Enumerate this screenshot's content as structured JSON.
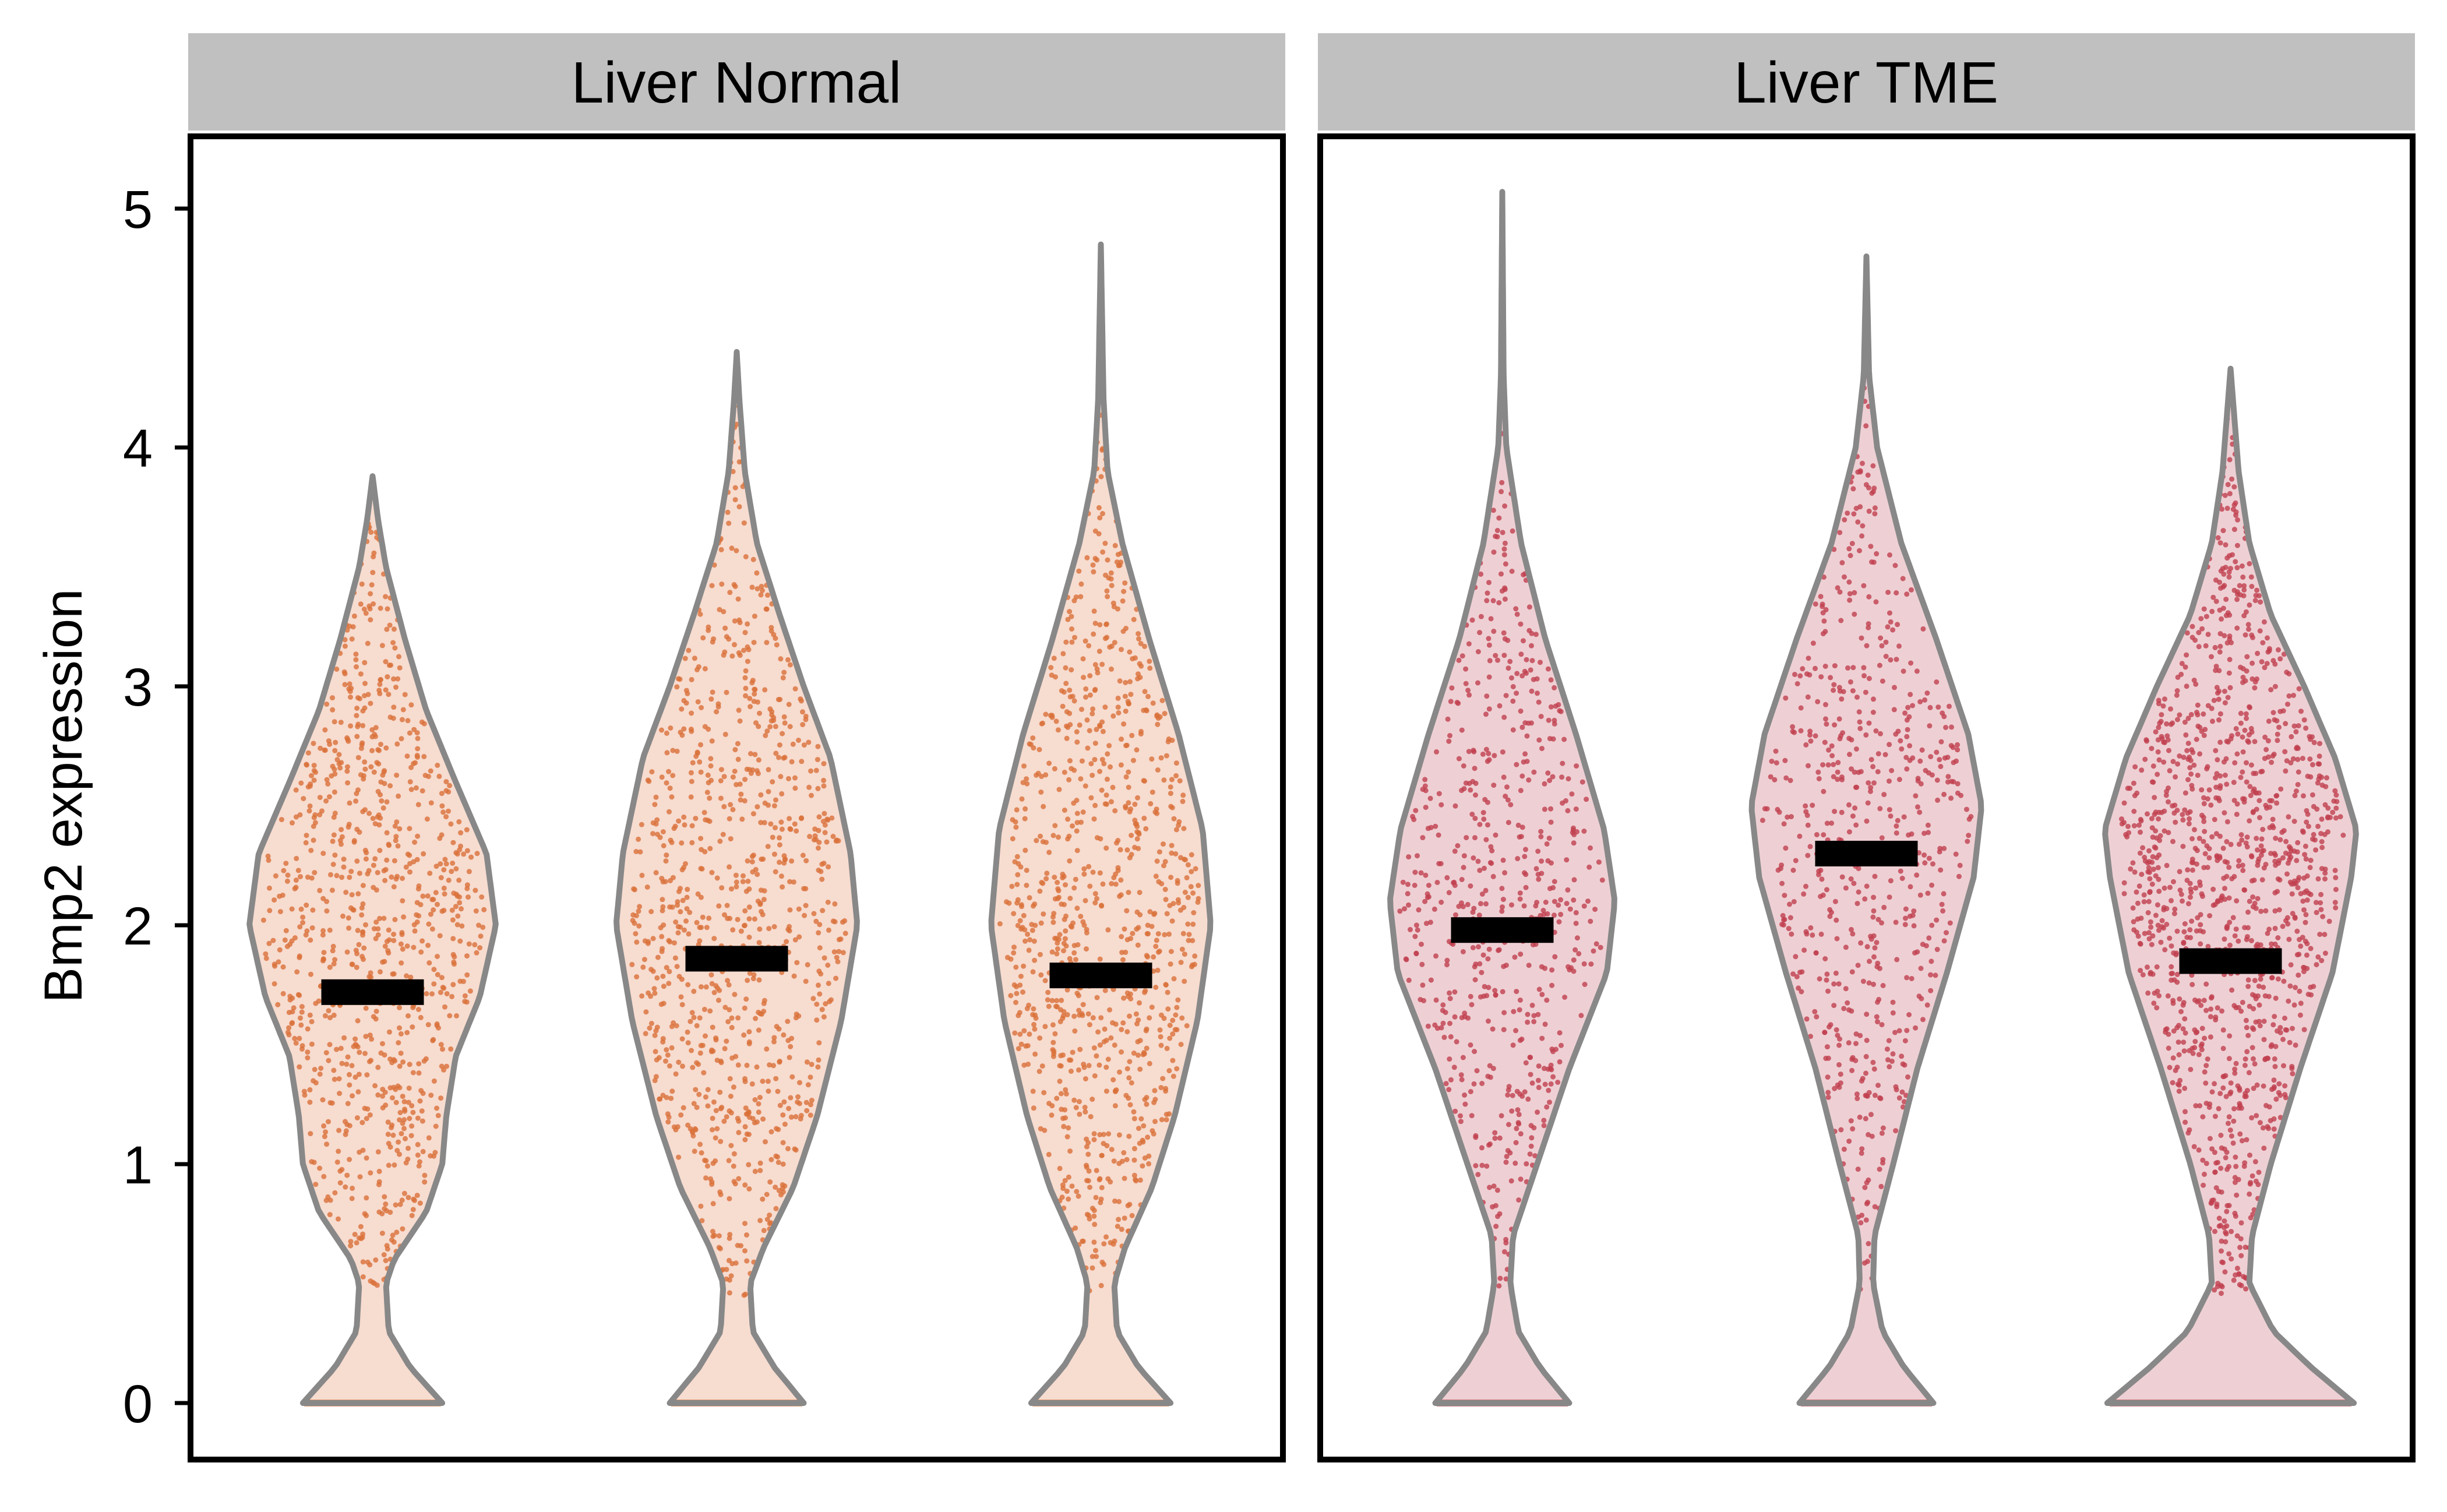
{
  "chart_data": {
    "type": "violin",
    "ylabel": "Bmp2 expression",
    "ylim": [
      -0.25,
      5.3
    ],
    "yticks": [
      0,
      1,
      2,
      3,
      4,
      5
    ],
    "grid": false,
    "legend": "none",
    "panels": [
      {
        "title": "Liver Normal",
        "fill": "#f7dcd0",
        "point_color": "#d9703a",
        "zero_color": "#c8500a",
        "violins": [
          {
            "median": 1.72,
            "max": 3.88,
            "density": [
              [
                0,
                0.52
              ],
              [
                0.15,
                0.28
              ],
              [
                0.3,
                0.12
              ],
              [
                0.5,
                0.1
              ],
              [
                0.6,
                0.16
              ],
              [
                0.8,
                0.4
              ],
              [
                1.0,
                0.52
              ],
              [
                1.2,
                0.55
              ],
              [
                1.45,
                0.62
              ],
              [
                1.7,
                0.8
              ],
              [
                2.0,
                0.92
              ],
              [
                2.3,
                0.85
              ],
              [
                2.6,
                0.62
              ],
              [
                2.9,
                0.4
              ],
              [
                3.2,
                0.24
              ],
              [
                3.5,
                0.1
              ],
              [
                3.7,
                0.04
              ],
              [
                3.88,
                0
              ]
            ]
          },
          {
            "median": 1.86,
            "max": 4.4,
            "density": [
              [
                0,
                0.5
              ],
              [
                0.15,
                0.28
              ],
              [
                0.3,
                0.12
              ],
              [
                0.5,
                0.1
              ],
              [
                0.65,
                0.2
              ],
              [
                0.9,
                0.42
              ],
              [
                1.2,
                0.6
              ],
              [
                1.6,
                0.78
              ],
              [
                2.0,
                0.9
              ],
              [
                2.3,
                0.85
              ],
              [
                2.7,
                0.7
              ],
              [
                3.0,
                0.5
              ],
              [
                3.3,
                0.32
              ],
              [
                3.6,
                0.15
              ],
              [
                3.9,
                0.06
              ],
              [
                4.2,
                0.02
              ],
              [
                4.4,
                0
              ]
            ]
          },
          {
            "median": 1.79,
            "max": 4.85,
            "density": [
              [
                0,
                0.52
              ],
              [
                0.15,
                0.28
              ],
              [
                0.3,
                0.12
              ],
              [
                0.5,
                0.1
              ],
              [
                0.65,
                0.18
              ],
              [
                0.9,
                0.38
              ],
              [
                1.2,
                0.55
              ],
              [
                1.6,
                0.72
              ],
              [
                2.0,
                0.82
              ],
              [
                2.4,
                0.76
              ],
              [
                2.8,
                0.58
              ],
              [
                3.2,
                0.36
              ],
              [
                3.6,
                0.16
              ],
              [
                3.9,
                0.05
              ],
              [
                4.2,
                0.02
              ],
              [
                4.85,
                0
              ]
            ]
          }
        ]
      },
      {
        "title": "Liver TME",
        "fill": "#eed0d4",
        "point_color": "#c0404f",
        "zero_color": "#a31a22",
        "violins": [
          {
            "median": 1.98,
            "max": 5.07,
            "density": [
              [
                0,
                0.5
              ],
              [
                0.15,
                0.28
              ],
              [
                0.3,
                0.12
              ],
              [
                0.5,
                0.06
              ],
              [
                0.7,
                0.08
              ],
              [
                1.0,
                0.26
              ],
              [
                1.4,
                0.5
              ],
              [
                1.8,
                0.78
              ],
              [
                2.1,
                0.84
              ],
              [
                2.4,
                0.76
              ],
              [
                2.8,
                0.55
              ],
              [
                3.2,
                0.32
              ],
              [
                3.6,
                0.14
              ],
              [
                4.0,
                0.03
              ],
              [
                4.3,
                0.01
              ],
              [
                5.07,
                0
              ]
            ]
          },
          {
            "median": 2.3,
            "max": 4.8,
            "density": [
              [
                0,
                0.5
              ],
              [
                0.15,
                0.28
              ],
              [
                0.3,
                0.12
              ],
              [
                0.5,
                0.05
              ],
              [
                0.7,
                0.06
              ],
              [
                1.0,
                0.2
              ],
              [
                1.4,
                0.38
              ],
              [
                1.8,
                0.6
              ],
              [
                2.2,
                0.8
              ],
              [
                2.5,
                0.86
              ],
              [
                2.8,
                0.76
              ],
              [
                3.2,
                0.52
              ],
              [
                3.6,
                0.26
              ],
              [
                4.0,
                0.08
              ],
              [
                4.3,
                0.02
              ],
              [
                4.8,
                0
              ]
            ]
          },
          {
            "median": 1.85,
            "max": 4.33,
            "density": [
              [
                0,
                0.92
              ],
              [
                0.15,
                0.6
              ],
              [
                0.3,
                0.32
              ],
              [
                0.5,
                0.14
              ],
              [
                0.7,
                0.16
              ],
              [
                1.0,
                0.3
              ],
              [
                1.4,
                0.52
              ],
              [
                1.8,
                0.76
              ],
              [
                2.2,
                0.9
              ],
              [
                2.4,
                0.94
              ],
              [
                2.7,
                0.78
              ],
              [
                3.0,
                0.55
              ],
              [
                3.3,
                0.3
              ],
              [
                3.6,
                0.14
              ],
              [
                3.9,
                0.06
              ],
              [
                4.33,
                0
              ]
            ]
          }
        ]
      }
    ]
  }
}
